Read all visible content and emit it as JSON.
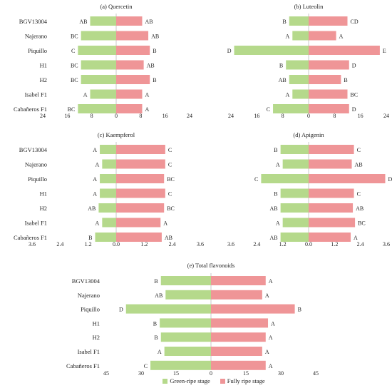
{
  "colors": {
    "green": "#b5d98b",
    "red": "#ef9597",
    "axis": "#c8c8c8",
    "text": "#222222"
  },
  "legend": {
    "green_label": "Green-ripe stage",
    "red_label": "Fully ripe stage"
  },
  "chart_data": [
    {
      "type": "bar",
      "orientation": "horizontal-diverging",
      "title": "(a) Quercetin",
      "categories": [
        "BGV13004",
        "Najerano",
        "Piquillo",
        "H1",
        "H2",
        "Isabel F1",
        "Cabañeros F1"
      ],
      "series": [
        {
          "name": "Green-ripe stage",
          "values": [
            8.5,
            11.5,
            12.5,
            11.5,
            11.5,
            8.5,
            12.5
          ],
          "letters": [
            "AB",
            "BC",
            "C",
            "BC",
            "BC",
            "A",
            "BC"
          ]
        },
        {
          "name": "Fully ripe stage",
          "values": [
            8.5,
            10.5,
            11,
            9,
            11,
            8.5,
            8.5
          ],
          "letters": [
            "AB",
            "AB",
            "B",
            "AB",
            "B",
            "A",
            "A"
          ]
        }
      ],
      "xlim": [
        -24,
        24
      ],
      "ticks": [
        -24,
        -16,
        -8,
        0,
        8,
        16,
        24
      ],
      "tick_labels": [
        "24",
        "16",
        "8",
        "0",
        "8",
        "16",
        "24"
      ]
    },
    {
      "type": "bar",
      "orientation": "horizontal-diverging",
      "title": "(b) Luteolin",
      "categories": [
        "BGV13004",
        "Najerano",
        "Piquillo",
        "H1",
        "H2",
        "Isabel F1",
        "Cabañeros F1"
      ],
      "series": [
        {
          "name": "Green-ripe stage",
          "values": [
            6,
            5,
            23,
            7,
            6,
            5,
            11
          ],
          "letters": [
            "B",
            "A",
            "D",
            "B",
            "AB",
            "A",
            "C"
          ]
        },
        {
          "name": "Fully ripe stage",
          "values": [
            12,
            8.5,
            22,
            12.5,
            10,
            12,
            12.5
          ],
          "letters": [
            "CD",
            "A",
            "E",
            "D",
            "B",
            "BC",
            "D"
          ]
        }
      ],
      "xlim": [
        -24,
        24
      ],
      "ticks": [
        -24,
        -16,
        -8,
        0,
        8,
        16,
        24
      ],
      "tick_labels": [
        "24",
        "16",
        "8",
        "0",
        "8",
        "16",
        "24"
      ]
    },
    {
      "type": "bar",
      "orientation": "horizontal-diverging",
      "title": "(c) Kaempferol",
      "categories": [
        "BGV13004",
        "Najerano",
        "Piquillo",
        "H1",
        "H2",
        "Isabel F1",
        "Cabañeros F1"
      ],
      "series": [
        {
          "name": "Green-ripe stage",
          "values": [
            0.7,
            0.6,
            0.7,
            0.7,
            0.75,
            0.6,
            0.9
          ],
          "letters": [
            "A",
            "A",
            "A",
            "A",
            "AB",
            "A",
            "B"
          ]
        },
        {
          "name": "Fully ripe stage",
          "values": [
            2.1,
            2.1,
            2.05,
            2.1,
            2.05,
            1.9,
            1.95
          ],
          "letters": [
            "C",
            "C",
            "BC",
            "C",
            "BC",
            "A",
            "AB"
          ]
        }
      ],
      "xlim": [
        -3.6,
        3.6
      ],
      "ticks": [
        -3.6,
        -2.4,
        -1.2,
        0,
        1.2,
        2.4,
        3.6
      ],
      "tick_labels": [
        "3.6",
        "2.4",
        "1.2",
        "0.0",
        "1.2",
        "2.4",
        "3.6"
      ]
    },
    {
      "type": "bar",
      "orientation": "horizontal-diverging",
      "title": "(d) Apigenin",
      "categories": [
        "BGV13004",
        "Najerano",
        "Piquillo",
        "H1",
        "H2",
        "Isabel F1",
        "Cabañeros F1"
      ],
      "series": [
        {
          "name": "Green-ripe stage",
          "values": [
            1.3,
            1.2,
            2.2,
            1.3,
            1.3,
            1.2,
            1.3
          ],
          "letters": [
            "B",
            "A",
            "C",
            "B",
            "AB",
            "A",
            "AB"
          ]
        },
        {
          "name": "Fully ripe stage",
          "values": [
            2.1,
            2.0,
            3.55,
            2.1,
            2.05,
            2.15,
            1.95
          ],
          "letters": [
            "C",
            "AB",
            "D",
            "C",
            "AB",
            "BC",
            "A"
          ]
        }
      ],
      "xlim": [
        -3.6,
        3.6
      ],
      "ticks": [
        -3.6,
        -2.4,
        -1.2,
        0,
        1.2,
        2.4,
        3.6
      ],
      "tick_labels": [
        "3.6",
        "2.4",
        "1.2",
        "0.0",
        "1.2",
        "2.4",
        "3.6"
      ]
    },
    {
      "type": "bar",
      "orientation": "horizontal-diverging",
      "title": "(e) Total flavonoids",
      "categories": [
        "BGV13004",
        "Najerano",
        "Piquillo",
        "H1",
        "H2",
        "Isabel F1",
        "Cabañeros F1"
      ],
      "series": [
        {
          "name": "Green-ripe stage",
          "values": [
            21.5,
            19.5,
            36.5,
            22,
            21.5,
            20,
            26
          ],
          "letters": [
            "B",
            "AB",
            "D",
            "B",
            "B",
            "A",
            "C"
          ]
        },
        {
          "name": "Fully ripe stage",
          "values": [
            23.5,
            22,
            36,
            24.5,
            23.5,
            22,
            23.5
          ],
          "letters": [
            "A",
            "A",
            "B",
            "A",
            "A",
            "A",
            "A"
          ]
        }
      ],
      "xlim": [
        -45,
        45
      ],
      "ticks": [
        -45,
        -30,
        -15,
        0,
        15,
        30,
        45
      ],
      "tick_labels": [
        "45",
        "30",
        "15",
        "0",
        "15",
        "30",
        "45"
      ]
    }
  ]
}
